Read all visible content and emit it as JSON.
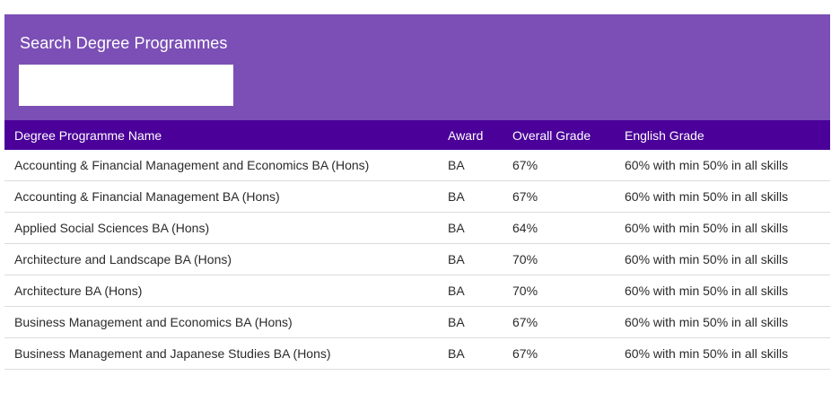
{
  "search": {
    "title": "Search Degree Programmes",
    "value": "",
    "placeholder": ""
  },
  "table": {
    "headers": [
      "Degree Programme Name",
      "Award",
      "Overall Grade",
      "English Grade"
    ],
    "rows": [
      [
        "Accounting & Financial Management and Economics BA (Hons)",
        "BA",
        "67%",
        "60% with min 50% in all skills"
      ],
      [
        "Accounting & Financial Management BA (Hons)",
        "BA",
        "67%",
        "60% with min 50% in all skills"
      ],
      [
        "Applied Social Sciences BA (Hons)",
        "BA",
        "64%",
        "60% with min 50% in all skills"
      ],
      [
        "Architecture and Landscape BA (Hons)",
        "BA",
        "70%",
        "60% with min 50% in all skills"
      ],
      [
        "Architecture BA (Hons)",
        "BA",
        "70%",
        "60% with min 50% in all skills"
      ],
      [
        "Business Management and Economics BA (Hons)",
        "BA",
        "67%",
        "60% with min 50% in all skills"
      ],
      [
        "Business Management and Japanese Studies BA (Hons)",
        "BA",
        "67%",
        "60% with min 50% in all skills"
      ]
    ]
  },
  "colors": {
    "panel": "#7b4fb5",
    "header": "#4a0099"
  }
}
